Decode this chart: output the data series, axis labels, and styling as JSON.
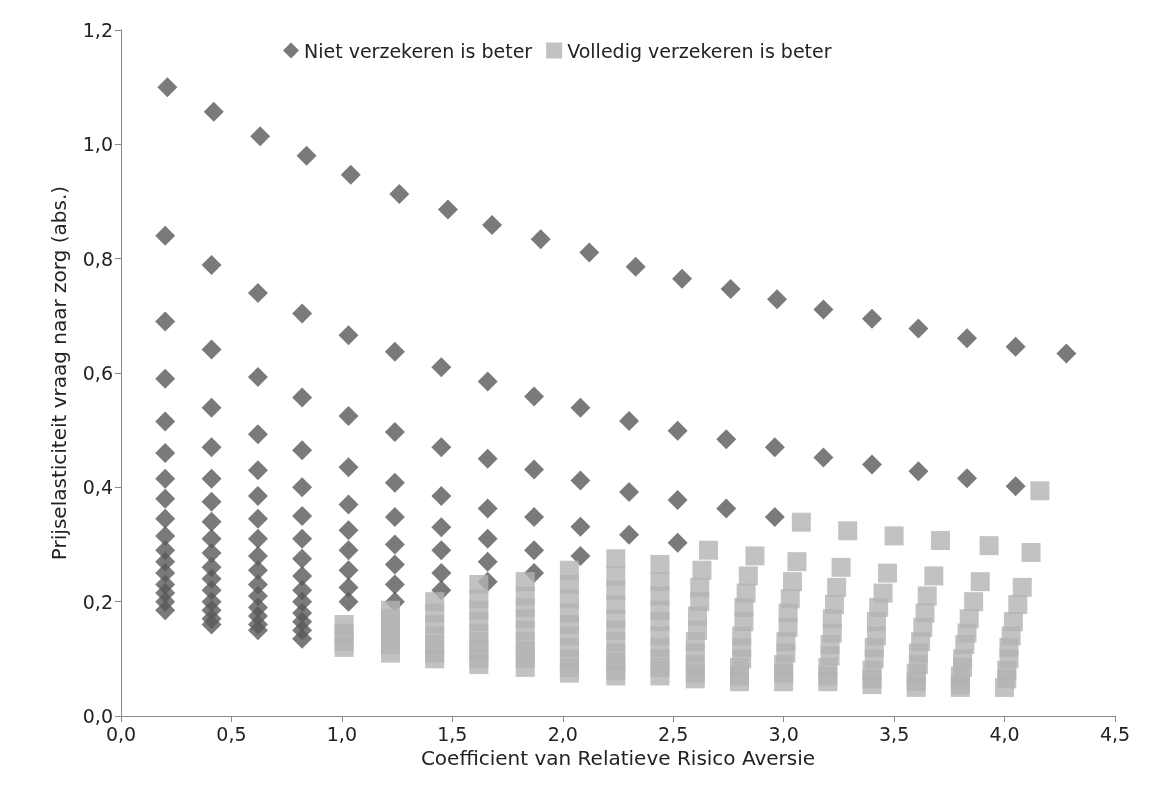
{
  "chart_data": {
    "type": "scatter",
    "xlabel": "Coefficient van Relatieve Risico Aversie",
    "ylabel": "Prijselasticiteit vraag naar zorg (abs.)",
    "xlim": [
      0,
      4.5
    ],
    "ylim": [
      0,
      1.2
    ],
    "xticks": [
      {
        "value": 0,
        "label": "0,0"
      },
      {
        "value": 0.5,
        "label": "0,5"
      },
      {
        "value": 1,
        "label": "1,0"
      },
      {
        "value": 1.5,
        "label": "1,5"
      },
      {
        "value": 2,
        "label": "2,0"
      },
      {
        "value": 2.5,
        "label": "2,5"
      },
      {
        "value": 3,
        "label": "3,0"
      },
      {
        "value": 3.5,
        "label": "3,5"
      },
      {
        "value": 4,
        "label": "4,0"
      },
      {
        "value": 4.5,
        "label": "4,5"
      }
    ],
    "yticks": [
      {
        "value": 0,
        "label": "0,0"
      },
      {
        "value": 0.2,
        "label": "0,2"
      },
      {
        "value": 0.4,
        "label": "0,4"
      },
      {
        "value": 0.6,
        "label": "0,6"
      },
      {
        "value": 0.8,
        "label": "0,8"
      },
      {
        "value": 1,
        "label": "1,0"
      },
      {
        "value": 1.2,
        "label": "1,2"
      }
    ],
    "grid": false,
    "legend": "top",
    "series": [
      {
        "name": "Niet verzekeren is beter",
        "color": "#595959",
        "marker": "diamond",
        "x": [
          0.21,
          0.2,
          0.2,
          0.2,
          0.2,
          0.2,
          0.2,
          0.2,
          0.2,
          0.2,
          0.2,
          0.2,
          0.2,
          0.2,
          0.2,
          0.2,
          0.2,
          0.42,
          0.41,
          0.41,
          0.41,
          0.41,
          0.41,
          0.41,
          0.41,
          0.41,
          0.41,
          0.41,
          0.41,
          0.41,
          0.41,
          0.41,
          0.41,
          0.41,
          0.63,
          0.62,
          0.62,
          0.62,
          0.62,
          0.62,
          0.62,
          0.62,
          0.62,
          0.62,
          0.62,
          0.62,
          0.62,
          0.62,
          0.62,
          0.62,
          0.84,
          0.82,
          0.82,
          0.82,
          0.82,
          0.82,
          0.82,
          0.82,
          0.82,
          0.82,
          0.82,
          0.82,
          0.82,
          0.82,
          0.82,
          1.04,
          1.03,
          1.03,
          1.03,
          1.03,
          1.03,
          1.03,
          1.03,
          1.03,
          1.03,
          1.26,
          1.24,
          1.24,
          1.24,
          1.24,
          1.24,
          1.24,
          1.24,
          1.24,
          1.48,
          1.45,
          1.45,
          1.45,
          1.45,
          1.45,
          1.45,
          1.45,
          1.68,
          1.66,
          1.66,
          1.66,
          1.66,
          1.66,
          1.66,
          1.9,
          1.87,
          1.87,
          1.87,
          1.87,
          1.87,
          2.12,
          2.08,
          2.08,
          2.08,
          2.08,
          2.33,
          2.3,
          2.3,
          2.3,
          2.54,
          2.52,
          2.52,
          2.52,
          2.76,
          2.74,
          2.74,
          2.97,
          2.96,
          2.96,
          3.18,
          3.18,
          3.4,
          3.4,
          3.61,
          3.61,
          3.83,
          3.83,
          4.05,
          4.05,
          4.28
        ],
        "values": [
          1.1,
          0.84,
          0.69,
          0.59,
          0.515,
          0.46,
          0.415,
          0.38,
          0.345,
          0.315,
          0.29,
          0.27,
          0.25,
          0.23,
          0.215,
          0.2,
          0.185,
          1.057,
          0.789,
          0.641,
          0.539,
          0.47,
          0.415,
          0.375,
          0.34,
          0.31,
          0.285,
          0.26,
          0.24,
          0.22,
          0.2,
          0.185,
          0.17,
          0.16,
          1.014,
          0.74,
          0.593,
          0.493,
          0.43,
          0.385,
          0.345,
          0.31,
          0.28,
          0.255,
          0.23,
          0.21,
          0.19,
          0.175,
          0.16,
          0.15,
          0.98,
          0.704,
          0.557,
          0.465,
          0.4,
          0.35,
          0.31,
          0.275,
          0.245,
          0.22,
          0.2,
          0.18,
          0.165,
          0.15,
          0.135,
          0.947,
          0.666,
          0.525,
          0.435,
          0.37,
          0.325,
          0.29,
          0.255,
          0.225,
          0.2,
          0.913,
          0.637,
          0.497,
          0.408,
          0.348,
          0.3,
          0.265,
          0.23,
          0.2,
          0.886,
          0.61,
          0.47,
          0.385,
          0.33,
          0.29,
          0.25,
          0.22,
          0.859,
          0.585,
          0.45,
          0.363,
          0.31,
          0.27,
          0.235,
          0.834,
          0.559,
          0.431,
          0.348,
          0.29,
          0.25,
          0.811,
          0.539,
          0.412,
          0.331,
          0.28,
          0.786,
          0.516,
          0.392,
          0.317,
          0.765,
          0.499,
          0.378,
          0.303,
          0.747,
          0.484,
          0.363,
          0.729,
          0.47,
          0.348,
          0.711,
          0.452,
          0.695,
          0.44,
          0.678,
          0.428,
          0.661,
          0.416,
          0.646,
          0.402,
          0.634
        ]
      },
      {
        "name": "Volledig verzekeren is beter",
        "color": "#b3b3b3",
        "marker": "square",
        "x": [
          1.01,
          1.01,
          1.01,
          1.01,
          1.22,
          1.22,
          1.22,
          1.22,
          1.22,
          1.22,
          1.42,
          1.42,
          1.42,
          1.42,
          1.42,
          1.42,
          1.42,
          1.62,
          1.62,
          1.62,
          1.62,
          1.62,
          1.62,
          1.62,
          1.62,
          1.62,
          1.83,
          1.83,
          1.83,
          1.83,
          1.83,
          1.83,
          1.83,
          1.83,
          1.83,
          2.03,
          2.03,
          2.03,
          2.03,
          2.03,
          2.03,
          2.03,
          2.03,
          2.03,
          2.03,
          2.24,
          2.24,
          2.24,
          2.24,
          2.24,
          2.24,
          2.24,
          2.24,
          2.24,
          2.24,
          2.24,
          2.44,
          2.44,
          2.44,
          2.44,
          2.44,
          2.44,
          2.44,
          2.44,
          2.44,
          2.44,
          2.66,
          2.63,
          2.62,
          2.62,
          2.61,
          2.61,
          2.6,
          2.6,
          2.6,
          2.6,
          2.6,
          2.87,
          2.84,
          2.83,
          2.82,
          2.82,
          2.81,
          2.81,
          2.81,
          2.8,
          2.8,
          2.8,
          3.08,
          3.06,
          3.04,
          3.03,
          3.02,
          3.02,
          3.01,
          3.01,
          3.0,
          3.0,
          3.0,
          3.29,
          3.26,
          3.24,
          3.23,
          3.22,
          3.22,
          3.21,
          3.21,
          3.2,
          3.2,
          3.2,
          3.5,
          3.47,
          3.45,
          3.43,
          3.42,
          3.42,
          3.41,
          3.41,
          3.4,
          3.4,
          3.4,
          3.71,
          3.68,
          3.65,
          3.64,
          3.63,
          3.62,
          3.61,
          3.61,
          3.6,
          3.6,
          3.6,
          3.93,
          3.89,
          3.86,
          3.84,
          3.83,
          3.82,
          3.81,
          3.81,
          3.8,
          3.8,
          3.8,
          4.16,
          4.12,
          4.08,
          4.06,
          4.04,
          4.03,
          4.02,
          4.02,
          4.01,
          4.01,
          4.0
        ],
        "values": [
          0.16,
          0.145,
          0.13,
          0.12,
          0.185,
          0.17,
          0.155,
          0.14,
          0.125,
          0.11,
          0.2,
          0.18,
          0.16,
          0.14,
          0.125,
          0.11,
          0.1,
          0.23,
          0.205,
          0.185,
          0.165,
          0.145,
          0.13,
          0.115,
          0.1,
          0.09,
          0.235,
          0.21,
          0.19,
          0.17,
          0.15,
          0.13,
          0.115,
          0.1,
          0.085,
          0.255,
          0.23,
          0.205,
          0.18,
          0.16,
          0.14,
          0.12,
          0.1,
          0.085,
          0.075,
          0.275,
          0.245,
          0.22,
          0.195,
          0.17,
          0.15,
          0.13,
          0.11,
          0.095,
          0.08,
          0.07,
          0.265,
          0.235,
          0.21,
          0.185,
          0.165,
          0.14,
          0.12,
          0.1,
          0.085,
          0.07,
          0.29,
          0.255,
          0.225,
          0.2,
          0.175,
          0.15,
          0.13,
          0.11,
          0.09,
          0.075,
          0.065,
          0.28,
          0.245,
          0.215,
          0.19,
          0.165,
          0.14,
          0.12,
          0.1,
          0.085,
          0.07,
          0.06,
          0.339,
          0.27,
          0.235,
          0.205,
          0.18,
          0.155,
          0.13,
          0.11,
          0.09,
          0.075,
          0.06,
          0.324,
          0.26,
          0.225,
          0.195,
          0.17,
          0.145,
          0.125,
          0.105,
          0.085,
          0.07,
          0.06,
          0.315,
          0.25,
          0.215,
          0.19,
          0.165,
          0.14,
          0.12,
          0.1,
          0.08,
          0.065,
          0.055,
          0.307,
          0.245,
          0.21,
          0.18,
          0.155,
          0.13,
          0.11,
          0.09,
          0.075,
          0.06,
          0.05,
          0.298,
          0.235,
          0.2,
          0.17,
          0.145,
          0.125,
          0.1,
          0.085,
          0.07,
          0.055,
          0.05,
          0.394,
          0.286,
          0.225,
          0.195,
          0.165,
          0.14,
          0.12,
          0.1,
          0.08,
          0.065,
          0.05
        ]
      }
    ]
  }
}
